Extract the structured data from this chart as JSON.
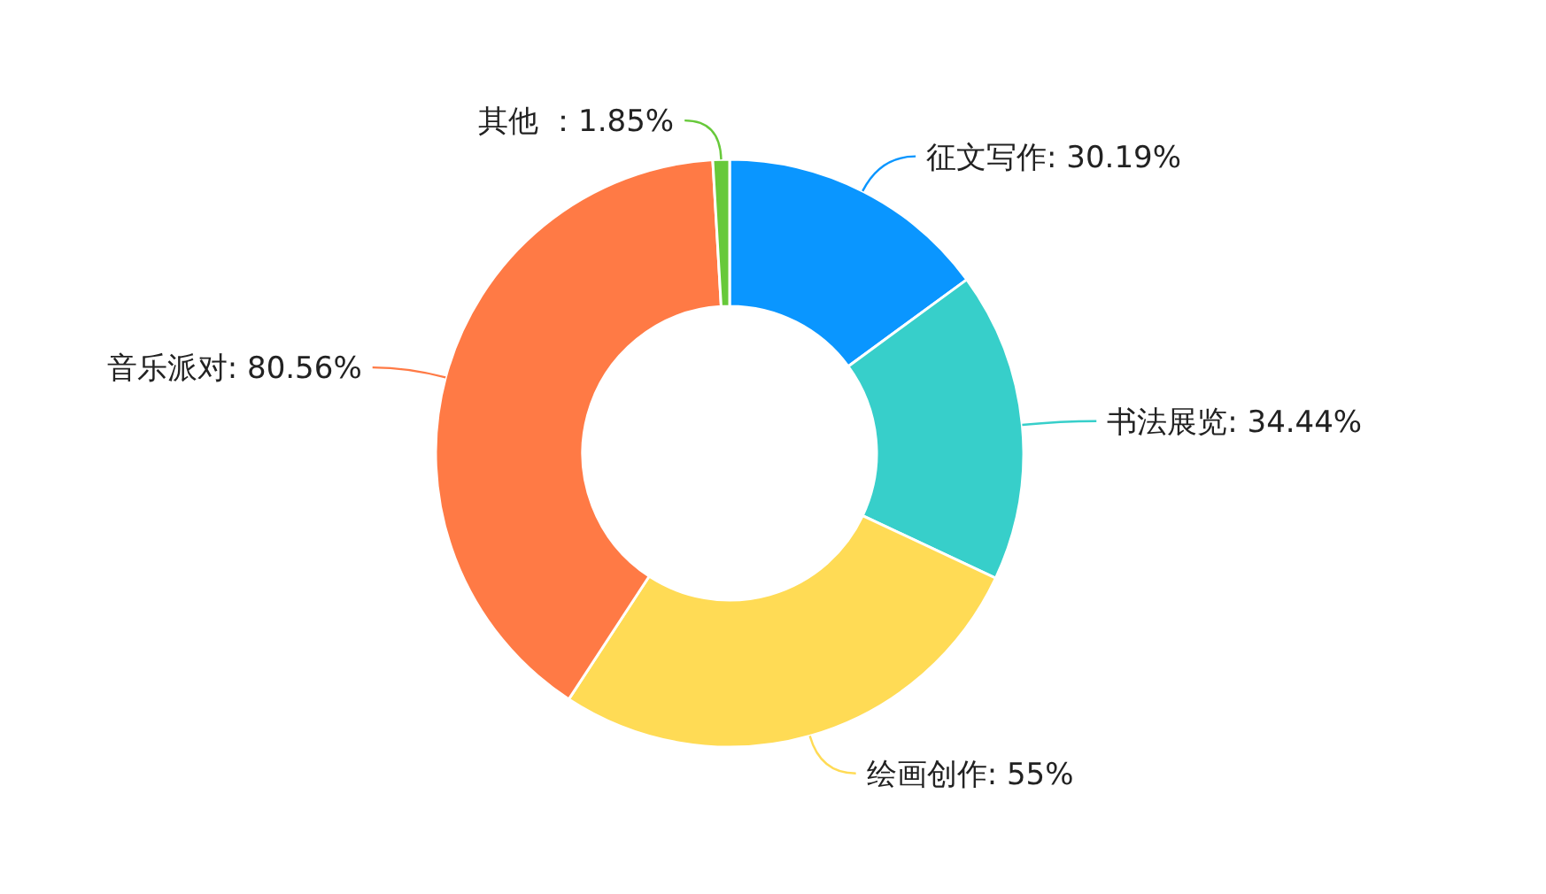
{
  "chart_data": {
    "type": "donut",
    "categories": [
      "征文写作",
      "书法展览",
      "绘画创作",
      "音乐派对",
      "其他 "
    ],
    "values": [
      30.19,
      34.44,
      55,
      80.56,
      1.85
    ],
    "value_labels": [
      ": 30.19%",
      ": 34.44%",
      ": 55%",
      ": 80.56%",
      "：1.85%"
    ],
    "colors": [
      "#0a96ff",
      "#37cfca",
      "#ffdb55",
      "#ff7a45",
      "#67c93a"
    ]
  }
}
